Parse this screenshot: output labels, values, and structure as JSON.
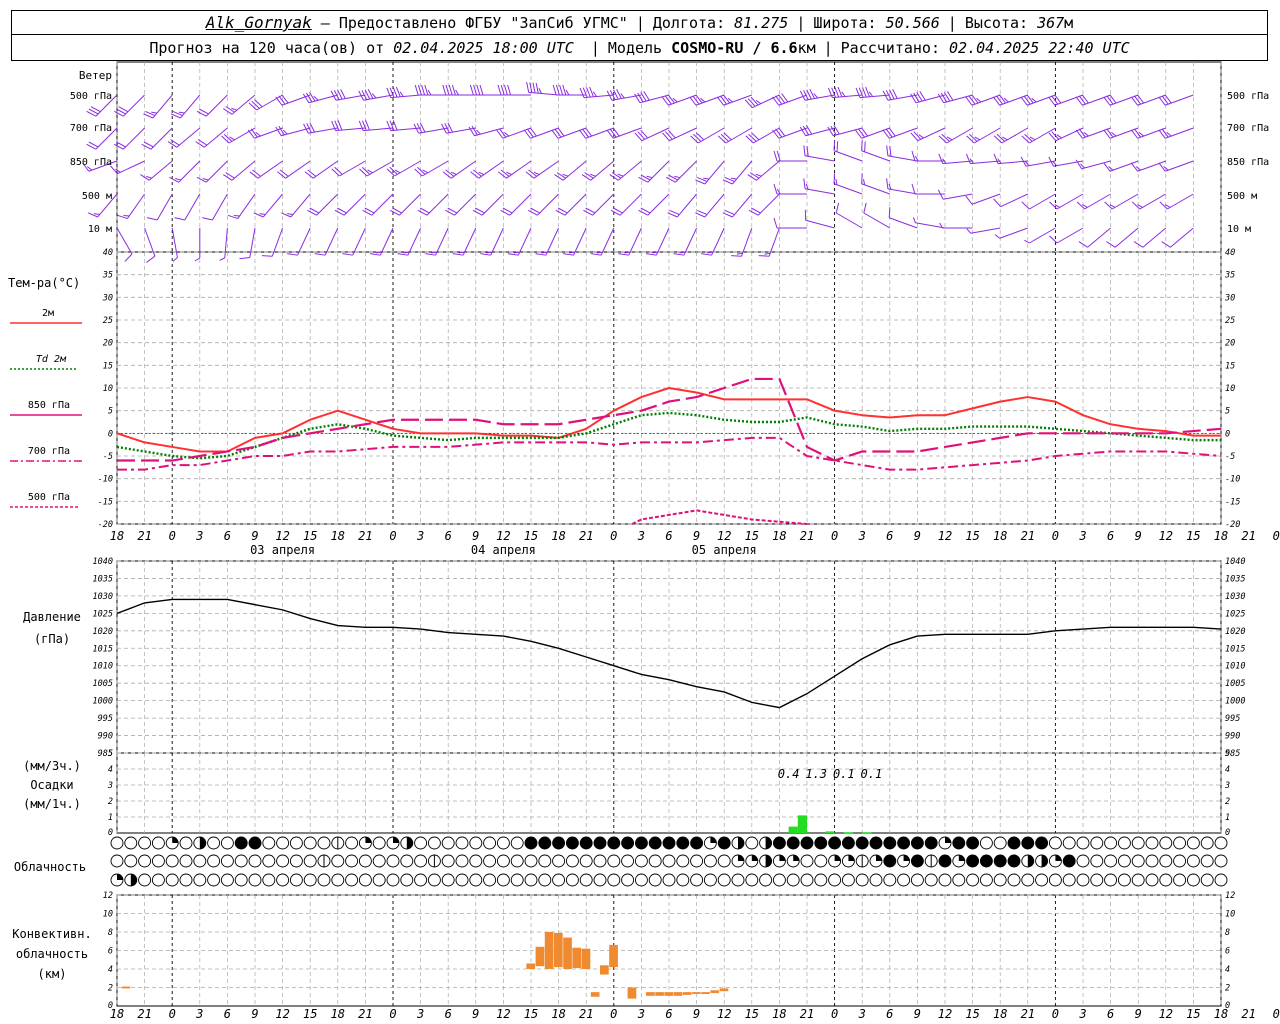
{
  "header": {
    "station": "Alk_Gornyak",
    "provider": "– Предоставлено ФГБУ \"ЗапСиб УГМС\"",
    "lon_label": "Долгота:",
    "lon_value": "81.275",
    "lat_label": "Широта:",
    "lat_value": "50.566",
    "alt_label": "Высота:",
    "alt_value": "367",
    "alt_unit": "м",
    "forecast_text": "Прогноз на 120 часа(ов) от",
    "forecast_time": "02.04.2025 18:00 UTC",
    "model_label": "Модель",
    "model_name": "COSMO-RU / 6.6",
    "model_unit": "км",
    "calc_label": "Рассчитано:",
    "calc_time": "02.04.2025 22:40 UTC"
  },
  "labels": {
    "wind_title": "Ветер",
    "wind_levels": [
      "500 гПа",
      "700 гПа",
      "850 гПа",
      "500 м",
      "10  м"
    ],
    "temp_title": "Тем-ра(°С)",
    "temp_legend": [
      "2м",
      "Td 2м",
      "850 гПа",
      "700 гПа",
      "500 гПа"
    ],
    "pressure_title": "Давление",
    "pressure_unit": "(гПа)",
    "precip_unit_3h": "(мм/3ч.)",
    "precip_title": "Осадки",
    "precip_unit_1h": "(мм/1ч.)",
    "cloud_title": "Облачность",
    "conv_title": "Конвективн.",
    "conv_title2": "облачность",
    "conv_unit": "(км)"
  },
  "colors": {
    "t2m": "#ff3030",
    "td2m": "#008000",
    "t850": "#e0107a",
    "t700": "#e0107a",
    "t500": "#e0107a",
    "wind": "#8a2be2",
    "pressure": "#000000",
    "precip": "#22dd22",
    "convective": "#f08a30"
  },
  "chart_data": [
    {
      "type": "line",
      "title": "Тем-ра(°С)",
      "ylim": [
        -20,
        40
      ],
      "yticks": [
        40,
        35,
        30,
        25,
        20,
        15,
        10,
        5,
        0,
        -5,
        -10,
        -15,
        -20
      ],
      "x_hours_from_start": [
        0,
        3,
        6,
        9,
        12,
        15,
        18,
        21,
        24,
        27,
        30,
        33,
        36,
        39,
        42,
        45,
        48,
        51,
        54,
        57,
        60,
        63,
        66,
        69,
        72,
        75,
        78,
        81,
        84,
        87,
        90,
        93,
        96,
        99,
        102,
        105,
        108,
        111,
        114,
        117,
        120
      ],
      "series": [
        {
          "name": "2м",
          "style": "solid",
          "values": [
            0,
            -2,
            -3,
            -4,
            -4,
            -1,
            0,
            3,
            5,
            3,
            1,
            0,
            0,
            0,
            -0.5,
            -0.5,
            -1,
            1,
            5,
            8,
            10,
            9,
            7.5,
            7.5,
            7.5,
            7.5,
            5,
            4,
            3.5,
            4,
            4,
            5.5,
            7,
            8,
            7,
            4,
            2,
            1,
            0.5,
            -0.5,
            -0.5
          ]
        },
        {
          "name": "Td 2м",
          "style": "dotted",
          "values": [
            -3,
            -4,
            -5,
            -5.5,
            -5,
            -3,
            -1,
            1,
            2,
            1,
            -0.5,
            -1,
            -1.5,
            -1,
            -1,
            -1,
            -1,
            0,
            2,
            4,
            4.5,
            4,
            3,
            2.5,
            2.5,
            3.5,
            2,
            1.5,
            0.5,
            1,
            1,
            1.5,
            1.5,
            1.5,
            1,
            0.5,
            0,
            -0.5,
            -1,
            -1.5,
            -1.5
          ]
        },
        {
          "name": "850 гПа",
          "style": "longdash",
          "values": [
            -6,
            -6,
            -6,
            -5,
            -4,
            -3,
            -1,
            0,
            1,
            2,
            3,
            3,
            3,
            3,
            2,
            2,
            2,
            3,
            4,
            5,
            7,
            8,
            10,
            12,
            12,
            -3,
            -6,
            -4,
            -4,
            -4,
            -3,
            -2,
            -1,
            0,
            0,
            0,
            0,
            0,
            0,
            0.5,
            1
          ]
        },
        {
          "name": "700 гПа",
          "style": "dashdot",
          "values": [
            -8,
            -8,
            -7,
            -7,
            -6,
            -5,
            -5,
            -4,
            -4,
            -3.5,
            -3,
            -3,
            -3,
            -2.5,
            -2,
            -2,
            -2,
            -2,
            -2.5,
            -2,
            -2,
            -2,
            -1.5,
            -1,
            -1,
            -5,
            -6,
            -7,
            -8,
            -8,
            -7.5,
            -7,
            -6.5,
            -6,
            -5,
            -4.5,
            -4,
            -4,
            -4,
            -4.5,
            -5
          ]
        },
        {
          "name": "500 гПа",
          "style": "dashed",
          "points": [
            [
              56,
              -20
            ],
            [
              57,
              -19
            ],
            [
              60,
              -18
            ],
            [
              63,
              -17
            ],
            [
              66,
              -18
            ],
            [
              69,
              -19
            ],
            [
              72,
              -19.5
            ],
            [
              75,
              -20
            ]
          ]
        }
      ]
    },
    {
      "type": "line",
      "title": "Давление",
      "ylabel": "(гПа)",
      "ylim": [
        985,
        1040
      ],
      "yticks": [
        1040,
        1035,
        1030,
        1025,
        1020,
        1015,
        1010,
        1005,
        1000,
        995,
        990,
        985
      ],
      "x_hours_from_start": [
        0,
        3,
        6,
        9,
        12,
        15,
        18,
        21,
        24,
        27,
        30,
        33,
        36,
        39,
        42,
        45,
        48,
        51,
        54,
        57,
        60,
        63,
        66,
        69,
        72,
        75,
        78,
        81,
        84,
        87,
        90,
        93,
        96,
        99,
        102,
        105,
        108,
        111,
        114,
        117,
        120
      ],
      "series": [
        {
          "name": "Давление",
          "values": [
            1025,
            1028,
            1029,
            1029,
            1029,
            1027.5,
            1026,
            1023.5,
            1021.5,
            1021,
            1021,
            1020.5,
            1019.5,
            1019,
            1018.5,
            1017,
            1015,
            1012.5,
            1010,
            1007.5,
            1006,
            1004,
            1002.5,
            999.5,
            998,
            1002,
            1007,
            1012,
            1016,
            1018.5,
            1019,
            1019,
            1019,
            1019,
            1020,
            1020.5,
            1021,
            1021,
            1021,
            1021,
            1020.5
          ]
        }
      ]
    },
    {
      "type": "bar",
      "title": "Осадки",
      "ylabel": "(мм/1ч.)",
      "ylim": [
        0,
        5
      ],
      "yticks": [
        0,
        1,
        2,
        3,
        4,
        5
      ],
      "bars_hours_from_start": [
        [
          73,
          0.4
        ],
        [
          74,
          1.1
        ],
        [
          77,
          0.1
        ],
        [
          79,
          0.05
        ],
        [
          81,
          0.05
        ]
      ],
      "totals_3h": [
        {
          "hour": 73,
          "label": "0.4"
        },
        {
          "hour": 76,
          "label": "1.3"
        },
        {
          "hour": 79,
          "label": "0.1"
        },
        {
          "hour": 82,
          "label": "0.1"
        }
      ]
    },
    {
      "type": "bar",
      "title": "Конвективн. облачность",
      "ylabel": "(км)",
      "ylim": [
        0,
        12
      ],
      "yticks": [
        0,
        2,
        4,
        6,
        8,
        10,
        12
      ],
      "segments_hours_from_start": [
        [
          0.5,
          1.5,
          2.1,
          1.9
        ],
        [
          44.5,
          45.5,
          4.6,
          4.0
        ],
        [
          45.5,
          46.5,
          6.4,
          4.3
        ],
        [
          46.5,
          47.5,
          8.0,
          4.0
        ],
        [
          47.5,
          48.5,
          7.9,
          4.2
        ],
        [
          48.5,
          49.5,
          7.4,
          4.0
        ],
        [
          49.5,
          50.5,
          6.3,
          4.1
        ],
        [
          50.5,
          51.5,
          6.2,
          4.0
        ],
        [
          51.5,
          52.5,
          1.5,
          1.0
        ],
        [
          52.5,
          53.5,
          4.4,
          3.4
        ],
        [
          53.5,
          54.5,
          6.6,
          4.2
        ],
        [
          55.5,
          56.5,
          2.0,
          0.8
        ],
        [
          57.5,
          58.5,
          1.5,
          1.1
        ],
        [
          58.5,
          59.5,
          1.5,
          1.1
        ],
        [
          59.5,
          60.5,
          1.5,
          1.1
        ],
        [
          60.5,
          61.5,
          1.5,
          1.1
        ],
        [
          61.5,
          62.5,
          1.5,
          1.2
        ],
        [
          62.5,
          63.5,
          1.5,
          1.3
        ],
        [
          63.5,
          64.5,
          1.5,
          1.3
        ],
        [
          64.5,
          65.5,
          1.7,
          1.4
        ],
        [
          65.5,
          66.5,
          1.9,
          1.6
        ]
      ]
    }
  ],
  "axis": {
    "hour_ticks": [
      "18",
      "21",
      "0",
      "3",
      "6",
      "9",
      "12",
      "15",
      "18",
      "21",
      "0",
      "3",
      "6",
      "9",
      "12",
      "15",
      "18",
      "21",
      "0",
      "3",
      "6",
      "9",
      "12",
      "15",
      "18",
      "21",
      "0",
      "3",
      "6",
      "9",
      "12",
      "15",
      "18",
      "21",
      "0",
      "3",
      "6",
      "9",
      "12",
      "15",
      "18",
      "21",
      "0"
    ],
    "dates": [
      "03 апреля",
      "04 апреля",
      "05 апреля"
    ]
  },
  "clouds": {
    "rows": [
      "000020300440000010202300000000444444444444424303444444444444244004440000000000000000000000000000000000000000000000000000000300010",
      "000000000000000100000001000000000000000000000223220022124241424444332400000000000000000000000000000000000000000000000000000000000",
      "230000000000000000000000000000000000000000000000000000000000000000000000000000000144444444444444430000000000000000000000000000000"
    ]
  },
  "wind": {
    "rows": [
      {
        "level": "500 гПа",
        "dir": [
          225,
          225,
          220,
          220,
          225,
          230,
          240,
          250,
          255,
          260,
          260,
          265,
          270,
          270,
          270,
          270,
          275,
          270,
          265,
          260,
          255,
          250,
          250,
          250,
          245,
          250,
          260,
          265,
          265,
          260,
          255,
          255,
          250,
          250,
          250,
          250,
          250,
          250,
          250,
          250
        ],
        "speed": [
          30,
          30,
          25,
          25,
          20,
          25,
          30,
          30,
          35,
          40,
          45,
          45,
          45,
          45,
          40,
          40,
          45,
          45,
          45,
          45,
          40,
          35,
          35,
          35,
          35,
          40,
          45,
          45,
          45,
          40,
          40,
          40,
          35,
          35,
          35,
          30,
          30,
          30,
          30,
          30
        ]
      },
      {
        "level": "700 гПа",
        "dir": [
          225,
          225,
          225,
          230,
          230,
          240,
          250,
          255,
          260,
          265,
          265,
          265,
          260,
          260,
          255,
          250,
          250,
          250,
          250,
          250,
          245,
          245,
          240,
          240,
          240,
          250,
          255,
          255,
          250,
          250,
          245,
          240,
          240,
          240,
          240,
          245,
          250,
          250,
          250,
          250
        ],
        "speed": [
          20,
          20,
          20,
          20,
          20,
          25,
          25,
          25,
          30,
          30,
          30,
          30,
          30,
          30,
          25,
          25,
          30,
          30,
          30,
          30,
          30,
          30,
          30,
          30,
          30,
          30,
          30,
          30,
          30,
          30,
          25,
          25,
          25,
          25,
          25,
          25,
          25,
          25,
          25,
          25
        ]
      },
      {
        "level": "850 гПа",
        "dir": [
          250,
          245,
          230,
          225,
          225,
          230,
          235,
          235,
          235,
          240,
          240,
          240,
          240,
          235,
          235,
          235,
          235,
          230,
          230,
          230,
          225,
          225,
          220,
          220,
          230,
          270,
          280,
          290,
          290,
          280,
          270,
          265,
          265,
          265,
          260,
          260,
          255,
          250,
          250,
          250
        ],
        "speed": [
          15,
          15,
          15,
          15,
          15,
          20,
          20,
          20,
          20,
          20,
          25,
          25,
          25,
          25,
          25,
          25,
          25,
          25,
          25,
          25,
          25,
          25,
          25,
          25,
          25,
          20,
          20,
          20,
          20,
          20,
          15,
          15,
          15,
          15,
          15,
          15,
          15,
          15,
          15,
          15
        ]
      },
      {
        "level": "500 м",
        "dir": [
          220,
          215,
          210,
          210,
          210,
          215,
          220,
          220,
          225,
          225,
          225,
          225,
          225,
          225,
          225,
          225,
          225,
          225,
          225,
          225,
          225,
          220,
          220,
          220,
          225,
          270,
          280,
          290,
          290,
          280,
          270,
          260,
          250,
          245,
          240,
          240,
          240,
          240,
          240,
          240
        ],
        "speed": [
          15,
          15,
          10,
          10,
          10,
          15,
          15,
          15,
          20,
          20,
          20,
          20,
          20,
          20,
          20,
          20,
          20,
          20,
          20,
          20,
          20,
          20,
          20,
          20,
          20,
          15,
          15,
          15,
          15,
          15,
          10,
          10,
          10,
          10,
          10,
          15,
          15,
          15,
          15,
          15
        ]
      },
      {
        "level": "10  м",
        "dir": [
          150,
          160,
          170,
          180,
          185,
          190,
          200,
          205,
          205,
          205,
          205,
          205,
          205,
          205,
          205,
          205,
          205,
          205,
          205,
          205,
          205,
          205,
          205,
          200,
          200,
          270,
          285,
          300,
          300,
          290,
          280,
          270,
          260,
          250,
          240,
          240,
          230,
          230,
          230,
          230
        ],
        "speed": [
          10,
          10,
          5,
          5,
          5,
          10,
          10,
          10,
          10,
          10,
          15,
          15,
          15,
          15,
          15,
          15,
          15,
          15,
          15,
          15,
          15,
          15,
          15,
          15,
          15,
          10,
          10,
          10,
          10,
          10,
          5,
          5,
          5,
          5,
          5,
          10,
          10,
          10,
          10,
          10
        ]
      }
    ]
  }
}
